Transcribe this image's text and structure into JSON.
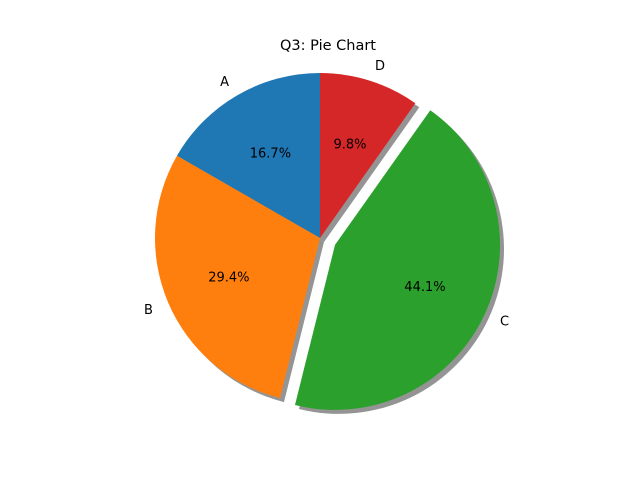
{
  "chart_data": {
    "type": "pie",
    "title": "Q3: Pie Chart",
    "categories": [
      "A",
      "B",
      "C",
      "D"
    ],
    "values": [
      16.7,
      29.4,
      44.1,
      9.8
    ],
    "percent_labels": [
      "16.7%",
      "29.4%",
      "44.1%",
      "9.8%"
    ],
    "colors": [
      "#1f77b4",
      "#ff7f0e",
      "#2ca02c",
      "#d62728"
    ],
    "exploded": [
      false,
      false,
      true,
      false
    ],
    "shadow": true,
    "start_angle_deg": 90,
    "direction": "counterclockwise"
  }
}
